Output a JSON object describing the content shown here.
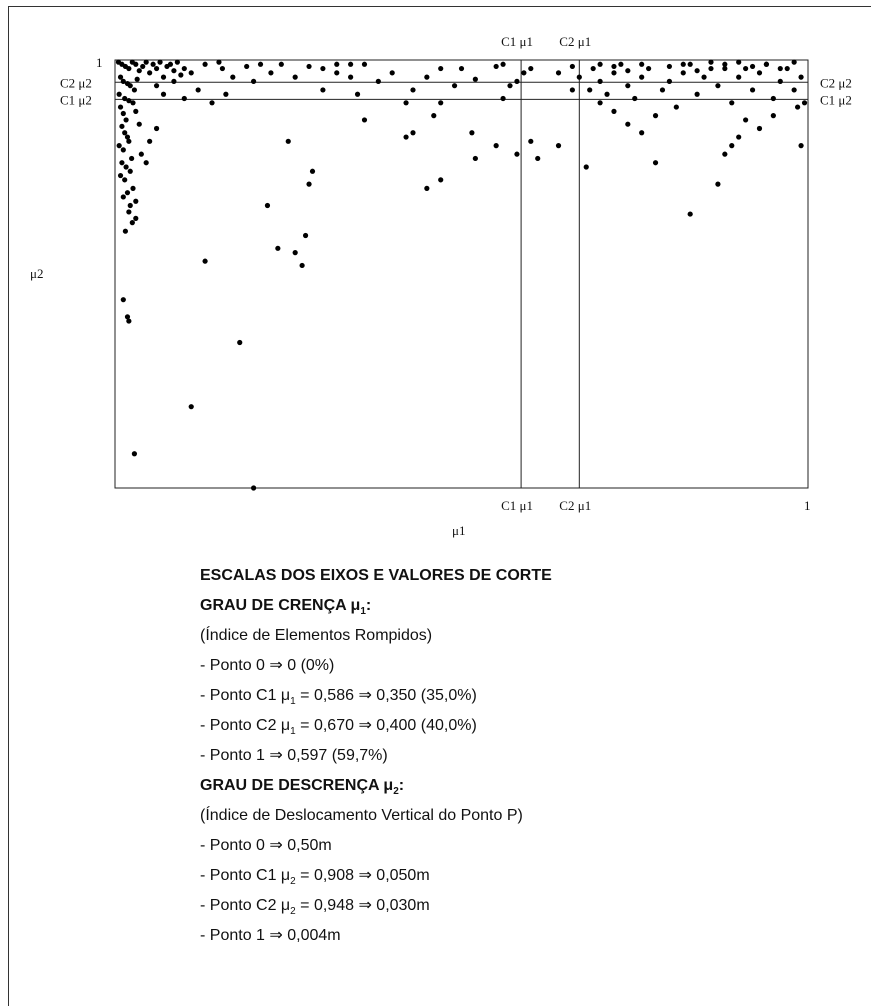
{
  "chart_data": {
    "type": "scatter",
    "xlabel": "μ1",
    "ylabel": "μ2",
    "xlim": [
      0,
      1
    ],
    "ylim": [
      0,
      1
    ],
    "tick_labels": {
      "top_left": "1",
      "bottom_right": "1"
    },
    "cut_lines": {
      "vertical": [
        {
          "label": "C1 μ1",
          "value": 0.586
        },
        {
          "label": "C2 μ1",
          "value": 0.67
        }
      ],
      "horizontal": [
        {
          "label": "C2 μ2",
          "value": 0.948
        },
        {
          "label": "C1 μ2",
          "value": 0.908
        }
      ]
    },
    "points": [
      [
        0.005,
        0.995
      ],
      [
        0.01,
        0.99
      ],
      [
        0.015,
        0.985
      ],
      [
        0.02,
        0.98
      ],
      [
        0.025,
        0.995
      ],
      [
        0.03,
        0.99
      ],
      [
        0.035,
        0.975
      ],
      [
        0.04,
        0.985
      ],
      [
        0.045,
        0.995
      ],
      [
        0.05,
        0.97
      ],
      [
        0.008,
        0.96
      ],
      [
        0.012,
        0.95
      ],
      [
        0.018,
        0.945
      ],
      [
        0.022,
        0.94
      ],
      [
        0.028,
        0.93
      ],
      [
        0.006,
        0.92
      ],
      [
        0.014,
        0.91
      ],
      [
        0.02,
        0.905
      ],
      [
        0.026,
        0.9
      ],
      [
        0.032,
        0.955
      ],
      [
        0.055,
        0.99
      ],
      [
        0.06,
        0.98
      ],
      [
        0.065,
        0.995
      ],
      [
        0.07,
        0.96
      ],
      [
        0.075,
        0.985
      ],
      [
        0.08,
        0.99
      ],
      [
        0.085,
        0.975
      ],
      [
        0.09,
        0.995
      ],
      [
        0.095,
        0.965
      ],
      [
        0.1,
        0.98
      ],
      [
        0.008,
        0.89
      ],
      [
        0.012,
        0.875
      ],
      [
        0.016,
        0.86
      ],
      [
        0.01,
        0.845
      ],
      [
        0.014,
        0.83
      ],
      [
        0.018,
        0.82
      ],
      [
        0.006,
        0.8
      ],
      [
        0.012,
        0.79
      ],
      [
        0.02,
        0.81
      ],
      [
        0.024,
        0.77
      ],
      [
        0.01,
        0.76
      ],
      [
        0.016,
        0.75
      ],
      [
        0.022,
        0.74
      ],
      [
        0.008,
        0.73
      ],
      [
        0.014,
        0.72
      ],
      [
        0.026,
        0.7
      ],
      [
        0.018,
        0.69
      ],
      [
        0.012,
        0.68
      ],
      [
        0.022,
        0.66
      ],
      [
        0.03,
        0.67
      ],
      [
        0.02,
        0.645
      ],
      [
        0.025,
        0.62
      ],
      [
        0.015,
        0.6
      ],
      [
        0.03,
        0.63
      ],
      [
        0.038,
        0.78
      ],
      [
        0.05,
        0.81
      ],
      [
        0.045,
        0.76
      ],
      [
        0.06,
        0.84
      ],
      [
        0.035,
        0.85
      ],
      [
        0.03,
        0.88
      ],
      [
        0.012,
        0.44
      ],
      [
        0.018,
        0.4
      ],
      [
        0.02,
        0.39
      ],
      [
        0.18,
        0.34
      ],
      [
        0.11,
        0.19
      ],
      [
        0.028,
        0.08
      ],
      [
        0.2,
        0.0
      ],
      [
        0.13,
        0.53
      ],
      [
        0.22,
        0.66
      ],
      [
        0.235,
        0.56
      ],
      [
        0.25,
        0.81
      ],
      [
        0.26,
        0.55
      ],
      [
        0.27,
        0.52
      ],
      [
        0.275,
        0.59
      ],
      [
        0.28,
        0.71
      ],
      [
        0.285,
        0.74
      ],
      [
        0.155,
        0.98
      ],
      [
        0.17,
        0.96
      ],
      [
        0.19,
        0.985
      ],
      [
        0.2,
        0.95
      ],
      [
        0.21,
        0.99
      ],
      [
        0.225,
        0.97
      ],
      [
        0.24,
        0.99
      ],
      [
        0.26,
        0.96
      ],
      [
        0.28,
        0.985
      ],
      [
        0.3,
        0.93
      ],
      [
        0.32,
        0.97
      ],
      [
        0.36,
        0.99
      ],
      [
        0.38,
        0.95
      ],
      [
        0.4,
        0.97
      ],
      [
        0.35,
        0.92
      ],
      [
        0.36,
        0.86
      ],
      [
        0.42,
        0.9
      ],
      [
        0.43,
        0.93
      ],
      [
        0.45,
        0.96
      ],
      [
        0.47,
        0.98
      ],
      [
        0.49,
        0.94
      ],
      [
        0.5,
        0.98
      ],
      [
        0.52,
        0.955
      ],
      [
        0.55,
        0.985
      ],
      [
        0.43,
        0.83
      ],
      [
        0.45,
        0.7
      ],
      [
        0.47,
        0.72
      ],
      [
        0.42,
        0.82
      ],
      [
        0.46,
        0.87
      ],
      [
        0.47,
        0.9
      ],
      [
        0.56,
        0.99
      ],
      [
        0.58,
        0.95
      ],
      [
        0.59,
        0.97
      ],
      [
        0.6,
        0.98
      ],
      [
        0.6,
        0.81
      ],
      [
        0.61,
        0.77
      ],
      [
        0.64,
        0.8
      ],
      [
        0.66,
        0.93
      ],
      [
        0.67,
        0.96
      ],
      [
        0.68,
        0.75
      ],
      [
        0.69,
        0.98
      ],
      [
        0.7,
        0.95
      ],
      [
        0.71,
        0.92
      ],
      [
        0.72,
        0.97
      ],
      [
        0.73,
        0.99
      ],
      [
        0.74,
        0.94
      ],
      [
        0.75,
        0.91
      ],
      [
        0.76,
        0.96
      ],
      [
        0.77,
        0.98
      ],
      [
        0.78,
        0.87
      ],
      [
        0.79,
        0.93
      ],
      [
        0.8,
        0.95
      ],
      [
        0.81,
        0.89
      ],
      [
        0.82,
        0.97
      ],
      [
        0.83,
        0.99
      ],
      [
        0.84,
        0.92
      ],
      [
        0.85,
        0.96
      ],
      [
        0.86,
        0.98
      ],
      [
        0.87,
        0.94
      ],
      [
        0.88,
        0.99
      ],
      [
        0.89,
        0.9
      ],
      [
        0.9,
        0.96
      ],
      [
        0.91,
        0.98
      ],
      [
        0.92,
        0.93
      ],
      [
        0.93,
        0.97
      ],
      [
        0.94,
        0.99
      ],
      [
        0.95,
        0.91
      ],
      [
        0.96,
        0.95
      ],
      [
        0.97,
        0.98
      ],
      [
        0.98,
        0.93
      ],
      [
        0.99,
        0.96
      ],
      [
        0.995,
        0.9
      ],
      [
        0.99,
        0.8
      ],
      [
        0.985,
        0.89
      ],
      [
        0.78,
        0.76
      ],
      [
        0.83,
        0.64
      ],
      [
        0.87,
        0.71
      ],
      [
        0.88,
        0.78
      ],
      [
        0.89,
        0.8
      ],
      [
        0.9,
        0.82
      ],
      [
        0.91,
        0.86
      ],
      [
        0.93,
        0.84
      ],
      [
        0.95,
        0.87
      ],
      [
        0.72,
        0.88
      ],
      [
        0.74,
        0.85
      ],
      [
        0.76,
        0.83
      ],
      [
        0.7,
        0.99
      ],
      [
        0.72,
        0.985
      ],
      [
        0.74,
        0.975
      ],
      [
        0.76,
        0.99
      ],
      [
        0.8,
        0.985
      ],
      [
        0.82,
        0.99
      ],
      [
        0.84,
        0.975
      ],
      [
        0.86,
        0.995
      ],
      [
        0.88,
        0.98
      ],
      [
        0.9,
        0.995
      ],
      [
        0.92,
        0.985
      ],
      [
        0.94,
        0.99
      ],
      [
        0.96,
        0.98
      ],
      [
        0.98,
        0.995
      ],
      [
        0.64,
        0.97
      ],
      [
        0.66,
        0.985
      ],
      [
        0.685,
        0.93
      ],
      [
        0.7,
        0.9
      ],
      [
        0.515,
        0.83
      ],
      [
        0.52,
        0.77
      ],
      [
        0.55,
        0.8
      ],
      [
        0.58,
        0.78
      ],
      [
        0.57,
        0.94
      ],
      [
        0.56,
        0.91
      ],
      [
        0.3,
        0.98
      ],
      [
        0.32,
        0.99
      ],
      [
        0.34,
        0.96
      ],
      [
        0.34,
        0.99
      ],
      [
        0.1,
        0.91
      ],
      [
        0.12,
        0.93
      ],
      [
        0.14,
        0.9
      ],
      [
        0.16,
        0.92
      ],
      [
        0.06,
        0.94
      ],
      [
        0.07,
        0.92
      ],
      [
        0.085,
        0.95
      ],
      [
        0.11,
        0.97
      ],
      [
        0.13,
        0.99
      ],
      [
        0.15,
        0.995
      ]
    ]
  },
  "legend": {
    "heading": "ESCALAS DOS EIXOS E VALORES DE CORTE",
    "sec1_title": "GRAU DE CRENÇA μ",
    "sec1_sub": "1",
    "sec1_colon": ":",
    "sec1_desc": "(Índice de Elementos Rompidos)",
    "sec1_p0": "- Ponto 0 ⇒ 0 (0%)",
    "sec1_c1_a": "- Ponto C1 μ",
    "sec1_c1_sub": "1",
    "sec1_c1_b": " = 0,586 ⇒ 0,350 (35,0%)",
    "sec1_c2_a": "- Ponto C2 μ",
    "sec1_c2_sub": "1",
    "sec1_c2_b": " = 0,670 ⇒ 0,400 (40,0%)",
    "sec1_p1": "- Ponto 1 ⇒ 0,597 (59,7%)",
    "sec2_title": "GRAU DE DESCRENÇA μ",
    "sec2_sub": "2",
    "sec2_colon": ":",
    "sec2_desc": "(Índice de Deslocamento Vertical do Ponto P)",
    "sec2_p0": "- Ponto 0 ⇒ 0,50m",
    "sec2_c1_a": "- Ponto C1 μ",
    "sec2_c1_sub": "2",
    "sec2_c1_b": " = 0,908 ⇒ 0,050m",
    "sec2_c2_a": "- Ponto C2 μ",
    "sec2_c2_sub": "2",
    "sec2_c2_b": " = 0,948 ⇒ 0,030m",
    "sec2_p1": "- Ponto 1 ⇒ 0,004m"
  }
}
